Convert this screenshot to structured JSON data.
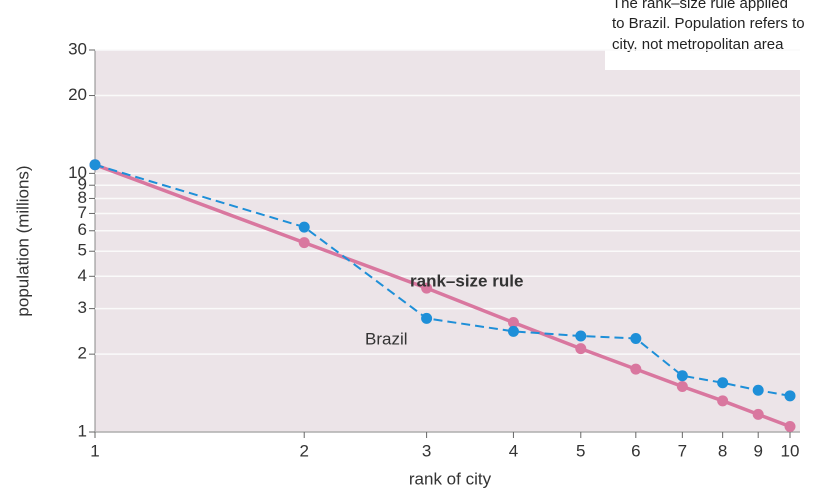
{
  "chart_data": {
    "type": "line",
    "annotation": [
      "The rank–size rule applied",
      "to Brazil. Population refers to",
      "city, not metropolitan area"
    ],
    "xlabel": "rank of city",
    "ylabel": "population (millions)",
    "x": [
      1,
      2,
      3,
      4,
      5,
      6,
      7,
      8,
      9,
      10
    ],
    "series": [
      {
        "name": "rank–size rule",
        "color": "#d9779f",
        "values": [
          10.8,
          5.4,
          3.6,
          2.65,
          2.1,
          1.75,
          1.5,
          1.32,
          1.17,
          1.05
        ]
      },
      {
        "name": "Brazil",
        "color": "#1e8fd8",
        "dashed": true,
        "values": [
          10.8,
          6.2,
          2.75,
          2.45,
          2.35,
          2.3,
          1.65,
          1.55,
          1.45,
          1.38
        ]
      }
    ],
    "xscale": "log",
    "yscale": "log",
    "xlim": [
      1,
      10
    ],
    "ylim": [
      1,
      30
    ],
    "xticks": [
      1,
      2,
      3,
      4,
      5,
      6,
      7,
      8,
      9,
      10
    ],
    "yticks": [
      1,
      2,
      3,
      4,
      5,
      6,
      7,
      8,
      9,
      10,
      20,
      30
    ],
    "grid": true
  }
}
